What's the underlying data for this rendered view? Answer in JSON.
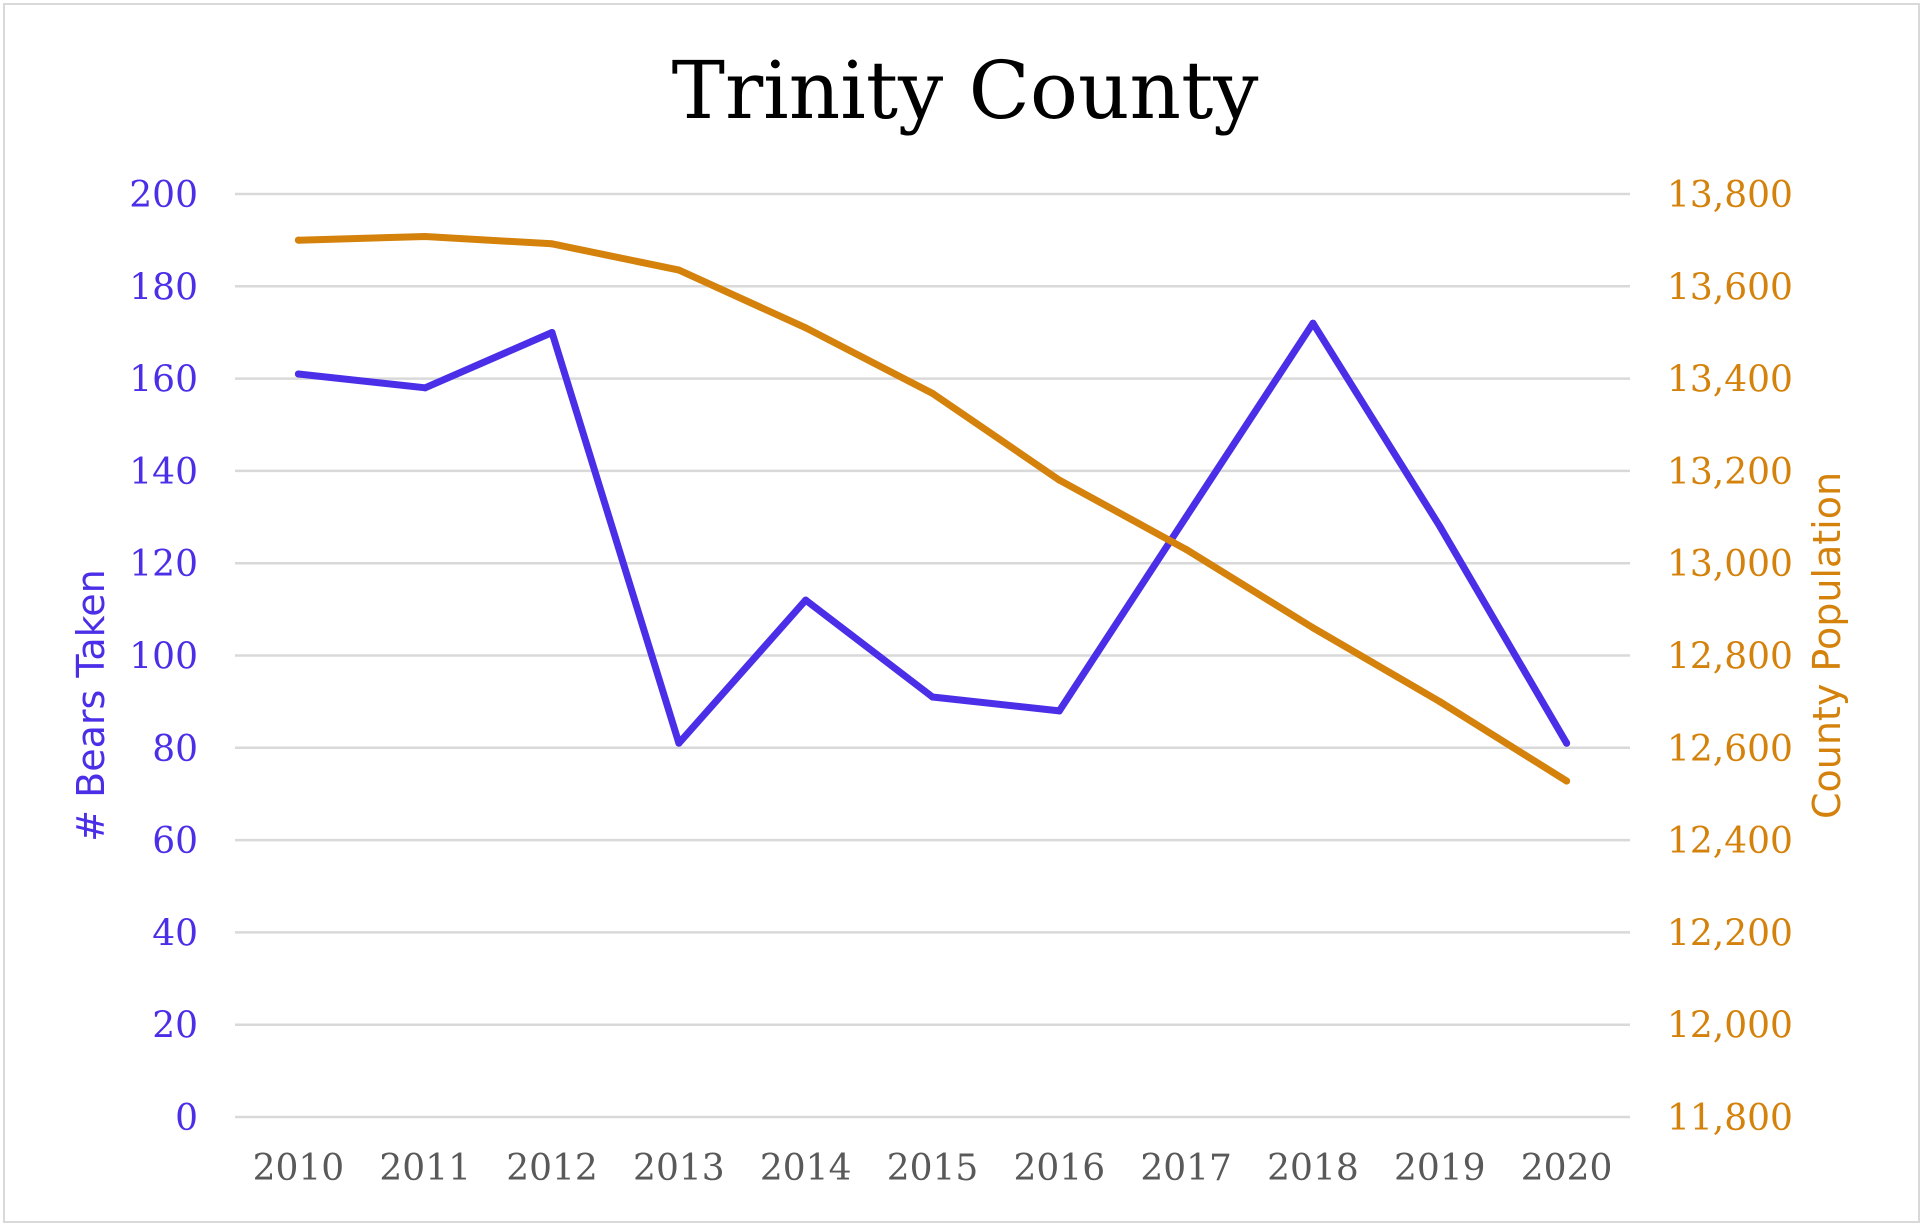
{
  "chart_data": {
    "type": "line",
    "title": "Trinity County",
    "x": [
      "2010",
      "2011",
      "2012",
      "2013",
      "2014",
      "2015",
      "2016",
      "2017",
      "2018",
      "2019",
      "2020"
    ],
    "y_left": {
      "label": "# Bears Taken",
      "ylim": [
        0,
        200
      ],
      "ticks": [
        "0",
        "20",
        "40",
        "60",
        "80",
        "100",
        "120",
        "140",
        "160",
        "180",
        "200"
      ],
      "color": "#4a2ee8"
    },
    "y_right": {
      "label": "County Population",
      "ylim": [
        11800,
        13800
      ],
      "ticks": [
        "11,800",
        "12,000",
        "12,200",
        "12,400",
        "12,600",
        "12,800",
        "13,000",
        "13,200",
        "13,400",
        "13,600",
        "13,800"
      ],
      "color": "#d4820b"
    },
    "series": [
      {
        "axis": "left",
        "color": "#4a2ee8",
        "values": [
          161,
          158,
          170,
          81,
          112,
          91,
          88,
          130,
          172,
          128,
          81
        ]
      },
      {
        "axis": "right",
        "color": "#d4820b",
        "values": [
          13700,
          13708,
          13692,
          13635,
          13510,
          13368,
          13180,
          13030,
          12860,
          12700,
          12528
        ]
      }
    ],
    "grid": true,
    "gridline_color": "#d9d9d9",
    "axis_text_color": "#595959"
  }
}
